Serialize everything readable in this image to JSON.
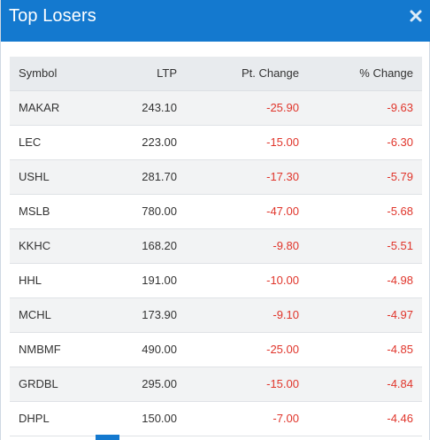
{
  "dialog": {
    "title": "Top Losers",
    "close_icon": "close-icon"
  },
  "colors": {
    "header_bg": "#1479cf",
    "negative": "#e0352b",
    "row_alt": "#f2f3f4",
    "table_header_bg": "#e8ebee"
  },
  "table": {
    "columns": [
      "Symbol",
      "LTP",
      "Pt. Change",
      "% Change"
    ],
    "rows": [
      {
        "symbol": "MAKAR",
        "ltp": "243.10",
        "pt_change": "-25.90",
        "pct_change": "-9.63"
      },
      {
        "symbol": "LEC",
        "ltp": "223.00",
        "pt_change": "-15.00",
        "pct_change": "-6.30"
      },
      {
        "symbol": "USHL",
        "ltp": "281.70",
        "pt_change": "-17.30",
        "pct_change": "-5.79"
      },
      {
        "symbol": "MSLB",
        "ltp": "780.00",
        "pt_change": "-47.00",
        "pct_change": "-5.68"
      },
      {
        "symbol": "KKHC",
        "ltp": "168.20",
        "pt_change": "-9.80",
        "pct_change": "-5.51"
      },
      {
        "symbol": "HHL",
        "ltp": "191.00",
        "pt_change": "-10.00",
        "pct_change": "-4.98"
      },
      {
        "symbol": "MCHL",
        "ltp": "173.90",
        "pt_change": "-9.10",
        "pct_change": "-4.97"
      },
      {
        "symbol": "NMBMF",
        "ltp": "490.00",
        "pt_change": "-25.00",
        "pct_change": "-4.85"
      },
      {
        "symbol": "GRDBL",
        "ltp": "295.00",
        "pt_change": "-15.00",
        "pct_change": "-4.84"
      },
      {
        "symbol": "DHPL",
        "ltp": "150.00",
        "pt_change": "-7.00",
        "pct_change": "-4.46"
      }
    ]
  }
}
